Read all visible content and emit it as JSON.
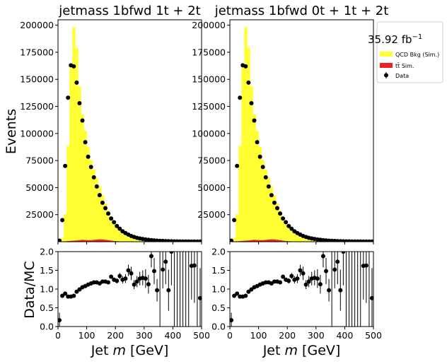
{
  "figure": {
    "ylabel_top": "Events",
    "ylabel_bottom": "Data/MC",
    "lumi": "35.92 fb",
    "lumi_exp": "−1",
    "legend": [
      {
        "label": "QCD Bkg (Sim.)",
        "color": "#ffff33",
        "kind": "patch"
      },
      {
        "label": "tt̄ Sim.",
        "color": "#ee2222",
        "kind": "patch"
      },
      {
        "label": "Data",
        "color": "#000000",
        "kind": "errorbar"
      }
    ]
  },
  "chart_data": [
    {
      "type": "bar",
      "title": "jetmass  1bfwd 1t + 2t",
      "xlabel": "Jet m [GeV]",
      "ylabel": "Events",
      "xlim": [
        0,
        500
      ],
      "ylim": [
        0,
        205000
      ],
      "bin_width": 10,
      "yticks": [
        25000,
        50000,
        75000,
        100000,
        125000,
        150000,
        175000,
        200000
      ],
      "xticks": [
        0,
        100,
        200,
        300,
        400,
        500
      ],
      "series": [
        {
          "name": "QCD Bkg (Sim.)",
          "color": "#ffff33",
          "x": [
            15,
            25,
            35,
            45,
            55,
            65,
            75,
            85,
            95,
            105,
            115,
            125,
            135,
            145,
            155,
            165,
            175,
            185,
            195,
            205,
            215,
            225,
            235,
            245,
            255,
            265,
            275,
            285,
            295,
            305,
            315,
            325,
            335,
            345,
            355,
            365,
            375,
            385,
            395
          ],
          "values": [
            3000,
            25000,
            88000,
            160000,
            197000,
            178000,
            142000,
            116000,
            101000,
            86000,
            74000,
            65000,
            57000,
            49000,
            41000,
            33500,
            27000,
            21000,
            16500,
            12500,
            9500,
            7200,
            5500,
            4200,
            3200,
            2500,
            1900,
            1400,
            1100,
            900,
            700,
            550,
            450,
            350,
            300,
            250,
            200,
            150,
            120
          ]
        },
        {
          "name": "tt̄ Sim.",
          "color": "#ee2222",
          "x": [
            15,
            25,
            35,
            45,
            55,
            65,
            75,
            85,
            95,
            105,
            115,
            125,
            135,
            145,
            155,
            165,
            175,
            185,
            195,
            205,
            215,
            225,
            235
          ],
          "values": [
            200,
            400,
            600,
            800,
            1000,
            1200,
            1500,
            1800,
            1600,
            1500,
            1500,
            1700,
            2000,
            2200,
            2100,
            1800,
            1400,
            1000,
            700,
            500,
            350,
            250,
            150
          ]
        },
        {
          "name": "Data",
          "color": "#000000",
          "x": [
            5,
            15,
            25,
            35,
            45,
            55,
            65,
            75,
            85,
            95,
            105,
            115,
            125,
            135,
            145,
            155,
            165,
            175,
            185,
            195,
            205,
            215,
            225,
            235,
            245,
            255,
            265,
            275,
            285,
            295,
            305,
            315,
            325,
            335,
            345,
            355,
            365,
            375,
            385,
            395,
            405,
            415,
            425,
            435,
            445,
            455,
            465,
            475,
            485,
            495
          ],
          "values": [
            1000,
            20000,
            70000,
            133000,
            163000,
            162000,
            147000,
            128000,
            112000,
            92000,
            78500,
            69000,
            59500,
            51000,
            43000,
            36000,
            31000,
            26000,
            21500,
            18000,
            14500,
            12000,
            9600,
            8000,
            6600,
            5300,
            4400,
            3600,
            3000,
            2500,
            2100,
            1800,
            1500,
            1200,
            1000,
            800,
            700,
            600,
            500,
            400,
            350,
            300,
            280,
            260,
            240,
            220,
            200,
            180,
            160,
            140
          ]
        },
        {
          "name": "Data/MC",
          "x": [
            5,
            15,
            25,
            35,
            45,
            55,
            65,
            75,
            85,
            95,
            105,
            115,
            125,
            135,
            145,
            155,
            165,
            175,
            185,
            195,
            205,
            215,
            225,
            235,
            245,
            255,
            265,
            275,
            285,
            295,
            305,
            315,
            325,
            335,
            345,
            355,
            365,
            375,
            385,
            395,
            405,
            415,
            425,
            435,
            445,
            455,
            465,
            475,
            485,
            495
          ],
          "values": [
            0.17,
            0.82,
            0.88,
            0.8,
            0.8,
            0.82,
            0.93,
            0.99,
            1.05,
            1.08,
            1.12,
            1.15,
            1.18,
            1.18,
            1.15,
            1.2,
            1.2,
            1.18,
            1.33,
            1.25,
            1.22,
            1.35,
            1.25,
            1.28,
            1.5,
            1.42,
            1.12,
            1.2,
            1.28,
            1.3,
            1.28,
            1.13,
            1.88,
            1.48,
            0.97,
            null,
            1.52,
            1.73,
            0.97,
            2.0,
            null,
            null,
            null,
            null,
            null,
            null,
            1.62,
            1.63,
            null,
            0.76
          ],
          "yerr": [
            0.2,
            0.04,
            0.03,
            0.02,
            0.02,
            0.02,
            0.02,
            0.02,
            0.02,
            0.02,
            0.02,
            0.02,
            0.02,
            0.03,
            0.03,
            0.03,
            0.04,
            0.04,
            0.05,
            0.06,
            0.07,
            0.08,
            0.1,
            0.12,
            0.15,
            0.18,
            0.12,
            0.15,
            0.18,
            0.2,
            0.25,
            0.25,
            0.3,
            0.35,
            0.3,
            null,
            0.5,
            0.6,
            0.55,
            0.9,
            null,
            null,
            null,
            null,
            null,
            null,
            0.9,
            1.0,
            null,
            0.8
          ],
          "ylim": [
            0,
            2.0
          ],
          "yticks": [
            0.0,
            0.5,
            1.0,
            1.5,
            2.0
          ]
        }
      ]
    },
    {
      "type": "bar",
      "title": "jetmass  1bfwd 0t + 1t + 2t",
      "xlabel": "Jet m [GeV]",
      "ylabel": "Events",
      "xlim": [
        0,
        500
      ],
      "ylim": [
        0,
        205000
      ],
      "bin_width": 10,
      "yticks": [
        25000,
        50000,
        75000,
        100000,
        125000,
        150000,
        175000,
        200000
      ],
      "xticks": [
        0,
        100,
        200,
        300,
        400,
        500
      ],
      "series": [
        {
          "name": "QCD Bkg (Sim.)",
          "color": "#ffff33",
          "x": [
            15,
            25,
            35,
            45,
            55,
            65,
            75,
            85,
            95,
            105,
            115,
            125,
            135,
            145,
            155,
            165,
            175,
            185,
            195,
            205,
            215,
            225,
            235,
            245,
            255,
            265,
            275,
            285,
            295,
            305,
            315,
            325,
            335,
            345,
            355,
            365,
            375,
            385,
            395
          ],
          "values": [
            3000,
            25000,
            88000,
            160000,
            197000,
            178000,
            142000,
            116000,
            101000,
            86000,
            74000,
            65000,
            57000,
            49000,
            41000,
            33500,
            27000,
            21000,
            16500,
            12500,
            9500,
            7200,
            5500,
            4200,
            3200,
            2500,
            1900,
            1400,
            1100,
            900,
            700,
            550,
            450,
            350,
            300,
            250,
            200,
            150,
            120
          ]
        },
        {
          "name": "tt̄ Sim.",
          "color": "#ee2222",
          "x": [
            15,
            25,
            35,
            45,
            55,
            65,
            75,
            85,
            95,
            105,
            115,
            125,
            135,
            145,
            155,
            165,
            175,
            185,
            195,
            205,
            215,
            225,
            235
          ],
          "values": [
            200,
            400,
            600,
            800,
            1000,
            1200,
            1500,
            1800,
            1600,
            1500,
            1500,
            1700,
            2000,
            2200,
            2100,
            1800,
            1400,
            1000,
            700,
            500,
            350,
            250,
            150
          ]
        },
        {
          "name": "Data",
          "color": "#000000",
          "x": [
            5,
            15,
            25,
            35,
            45,
            55,
            65,
            75,
            85,
            95,
            105,
            115,
            125,
            135,
            145,
            155,
            165,
            175,
            185,
            195,
            205,
            215,
            225,
            235,
            245,
            255,
            265,
            275,
            285,
            295,
            305,
            315,
            325,
            335,
            345,
            355,
            365,
            375,
            385,
            395,
            405,
            415,
            425,
            435,
            445,
            455,
            465,
            475,
            485,
            495
          ],
          "values": [
            1000,
            20000,
            70000,
            133000,
            163000,
            162000,
            147000,
            128000,
            112000,
            92000,
            78500,
            69000,
            59500,
            51000,
            43000,
            36000,
            31000,
            26000,
            21500,
            18000,
            14500,
            12000,
            9600,
            8000,
            6600,
            5300,
            4400,
            3600,
            3000,
            2500,
            2100,
            1800,
            1500,
            1200,
            1000,
            800,
            700,
            600,
            500,
            400,
            350,
            300,
            280,
            260,
            240,
            220,
            200,
            180,
            160,
            140
          ]
        },
        {
          "name": "Data/MC",
          "x": [
            5,
            15,
            25,
            35,
            45,
            55,
            65,
            75,
            85,
            95,
            105,
            115,
            125,
            135,
            145,
            155,
            165,
            175,
            185,
            195,
            205,
            215,
            225,
            235,
            245,
            255,
            265,
            275,
            285,
            295,
            305,
            315,
            325,
            335,
            345,
            355,
            365,
            375,
            385,
            395,
            405,
            415,
            425,
            435,
            445,
            455,
            465,
            475,
            485,
            495
          ],
          "values": [
            0.17,
            0.82,
            0.88,
            0.8,
            0.8,
            0.82,
            0.93,
            0.99,
            1.05,
            1.08,
            1.12,
            1.15,
            1.18,
            1.18,
            1.15,
            1.2,
            1.2,
            1.18,
            1.33,
            1.25,
            1.22,
            1.35,
            1.25,
            1.28,
            1.5,
            1.42,
            1.12,
            1.2,
            1.28,
            1.3,
            1.28,
            1.13,
            1.88,
            1.48,
            0.97,
            null,
            1.52,
            1.73,
            0.97,
            2.0,
            null,
            null,
            null,
            null,
            null,
            null,
            1.62,
            1.63,
            null,
            0.76
          ],
          "yerr": [
            0.2,
            0.04,
            0.03,
            0.02,
            0.02,
            0.02,
            0.02,
            0.02,
            0.02,
            0.02,
            0.02,
            0.02,
            0.02,
            0.03,
            0.03,
            0.03,
            0.04,
            0.04,
            0.05,
            0.06,
            0.07,
            0.08,
            0.1,
            0.12,
            0.15,
            0.18,
            0.12,
            0.15,
            0.18,
            0.2,
            0.25,
            0.25,
            0.3,
            0.35,
            0.3,
            null,
            0.5,
            0.6,
            0.55,
            0.9,
            null,
            null,
            null,
            null,
            null,
            null,
            0.9,
            1.0,
            null,
            0.8
          ],
          "ylim": [
            0,
            2.0
          ],
          "yticks": [
            0.0,
            0.5,
            1.0,
            1.5,
            2.0
          ]
        }
      ]
    }
  ]
}
